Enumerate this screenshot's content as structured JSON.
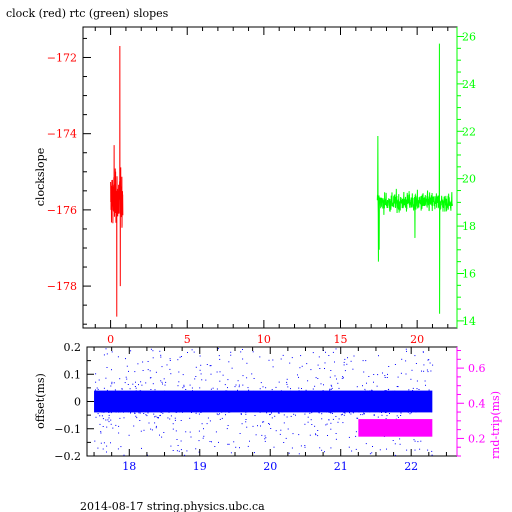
{
  "footer": "2014-08-17  string.physics.ubc.ca",
  "colors": {
    "red": "#ff0000",
    "green": "#00ff00",
    "blue": "#0000ff",
    "magenta": "#ff00ff",
    "axis": "#000000"
  },
  "chart_data": [
    {
      "type": "line",
      "title": "clock (red) rtc (green) slopes",
      "ylabel": "clockslope",
      "ylabel_right": "",
      "xlim": [
        -1.8,
        22.6
      ],
      "ylim": [
        -179.1,
        -171.2
      ],
      "ylim_right": [
        13.7,
        26.4
      ],
      "x_ticks": [
        0,
        5,
        10,
        15,
        20
      ],
      "y_ticks": [
        -172,
        -174,
        -176,
        -178
      ],
      "y_ticks_right": [
        14,
        16,
        18,
        20,
        22,
        24,
        26
      ],
      "series": [
        {
          "name": "clock",
          "color": "red",
          "axis": "left",
          "x_range": [
            0.0,
            0.8
          ],
          "y_center": -175.7,
          "y_min": -178.8,
          "y_max": -171.7
        },
        {
          "name": "rtc",
          "color": "green",
          "axis": "right",
          "x_range": [
            17.4,
            22.3
          ],
          "y_center": 19.0,
          "y_min": 14.3,
          "y_max": 25.7
        }
      ]
    },
    {
      "type": "scatter",
      "ylabel": "offset(ms)",
      "ylabel_right": "rnd-trip(ms)",
      "xlim": [
        17.4,
        22.65
      ],
      "ylim": [
        -0.2,
        0.2
      ],
      "ylim_right": [
        0.1,
        0.72
      ],
      "x_ticks": [
        18,
        19,
        20,
        21,
        22
      ],
      "y_ticks": [
        0.2,
        0.1,
        0,
        -0.1,
        -0.2
      ],
      "y_ticks_right": [
        0.6,
        0.4,
        0.2
      ],
      "series": [
        {
          "name": "offset",
          "color": "blue",
          "axis": "left",
          "x_range": [
            17.5,
            22.3
          ],
          "y_center": 0.0,
          "y_core": 0.04,
          "y_outlier": 0.2
        },
        {
          "name": "rnd-trip",
          "color": "magenta",
          "axis": "right",
          "x_range": [
            21.25,
            22.3
          ],
          "y_min": 0.21,
          "y_max": 0.31
        }
      ]
    }
  ]
}
